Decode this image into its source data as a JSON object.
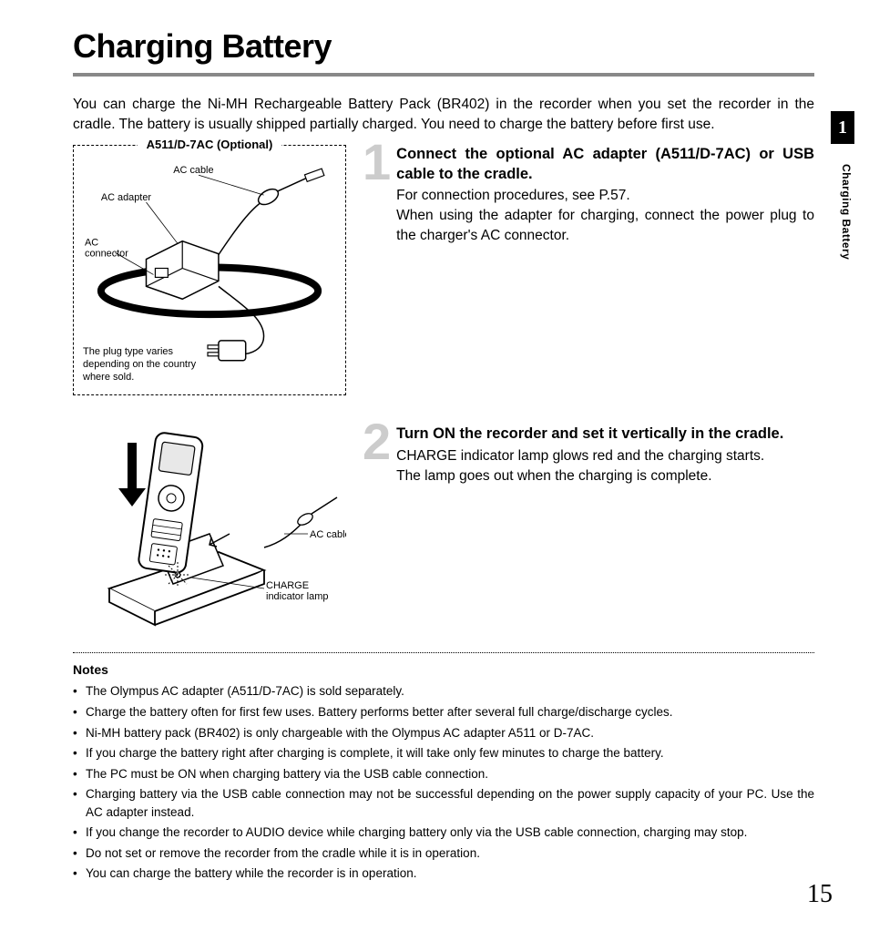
{
  "title": "Charging Battery",
  "intro": "You can charge the Ni-MH Rechargeable Battery Pack (BR402) in the recorder when you set the recorder in the cradle. The battery is usually shipped partially charged. You need to charge the battery before first use.",
  "diagram1": {
    "box_title": "A511/D-7AC (Optional)",
    "labels": {
      "ac_cable": "AC cable",
      "ac_adapter": "AC adapter",
      "ac_connector": "AC connector",
      "plug_note": "The plug type varies depending on the country where sold."
    },
    "style": {
      "border_style": "dashed",
      "border_color": "#000000",
      "title_fontsize": 13,
      "label_fontsize": 11
    }
  },
  "step1": {
    "num": "1",
    "head": "Connect the  optional AC adapter (A511/D-7AC) or USB cable to the cradle.",
    "body": "For connection procedures, see P.57.\nWhen using the adapter for charging, connect the power plug to the charger's AC connector."
  },
  "diagram2": {
    "labels": {
      "ac_cable": "AC cable",
      "charge_lamp": "CHARGE indicator lamp"
    },
    "style": {
      "label_fontsize": 11
    }
  },
  "step2": {
    "num": "2",
    "head": "Turn ON the recorder and set it vertically in the cradle.",
    "body": "CHARGE indicator lamp glows red and the charging starts.\nThe lamp goes out when the charging is complete."
  },
  "notes": {
    "heading": "Notes",
    "items": [
      "The Olympus AC adapter (A511/D-7AC) is sold separately.",
      "Charge the battery often for first few uses. Battery performs better after several full charge/discharge cycles.",
      "Ni-MH battery pack (BR402) is only chargeable with the Olympus AC adapter A511 or D-7AC.",
      "If you charge the battery right after charging is complete, it will take only few minutes to charge the battery.",
      "The PC must be ON when charging battery via the USB cable connection.",
      "Charging battery via the USB cable connection may not be successful depending on the power supply capacity of your PC. Use the AC adapter instead.",
      "If you change the recorder to AUDIO device while charging battery only via the USB cable connection, charging may stop.",
      "Do not set or remove the recorder from the cradle while it is in operation.",
      "You can charge the battery while the recorder is in operation."
    ]
  },
  "margin": {
    "tab": "1",
    "vert": "Charging Battery"
  },
  "page_number": "15",
  "colors": {
    "rule": "#888888",
    "bignum": "#cccccc",
    "text": "#000000",
    "bg": "#ffffff",
    "tab_bg": "#000000",
    "tab_fg": "#ffffff"
  },
  "typography": {
    "title_fontsize": 36,
    "body_fontsize": 15.5,
    "step_head_fontsize": 16.5,
    "bignum_fontsize": 56,
    "notes_fontsize": 13.5,
    "pagenum_fontsize": 28
  }
}
